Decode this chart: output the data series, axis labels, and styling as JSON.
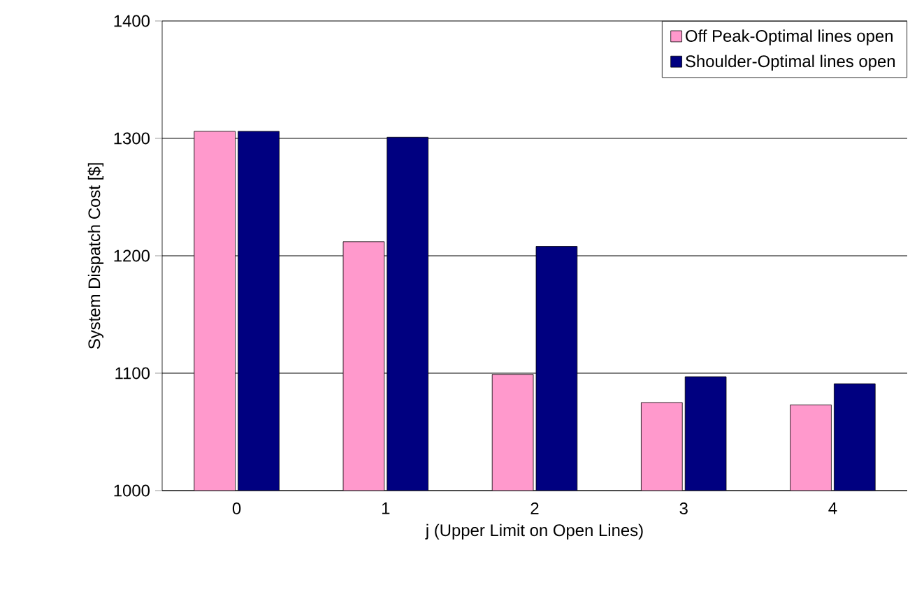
{
  "chart_data": {
    "type": "bar",
    "xlabel": "j (Upper Limit on Open Lines)",
    "ylabel": "System Dispatch Cost [$]",
    "categories": [
      "0",
      "1",
      "2",
      "3",
      "4"
    ],
    "series": [
      {
        "name": "Off Peak-Optimal lines open",
        "color": "#ff99cc",
        "values": [
          1306,
          1212,
          1099,
          1075,
          1073
        ]
      },
      {
        "name": "Shoulder-Optimal lines open",
        "color": "#000080",
        "values": [
          1306,
          1301,
          1208,
          1097,
          1091
        ]
      }
    ],
    "ylim": [
      1000,
      1400
    ],
    "yticks": [
      1000,
      1100,
      1200,
      1300,
      1400
    ],
    "grid": "y",
    "legend": "top right"
  }
}
